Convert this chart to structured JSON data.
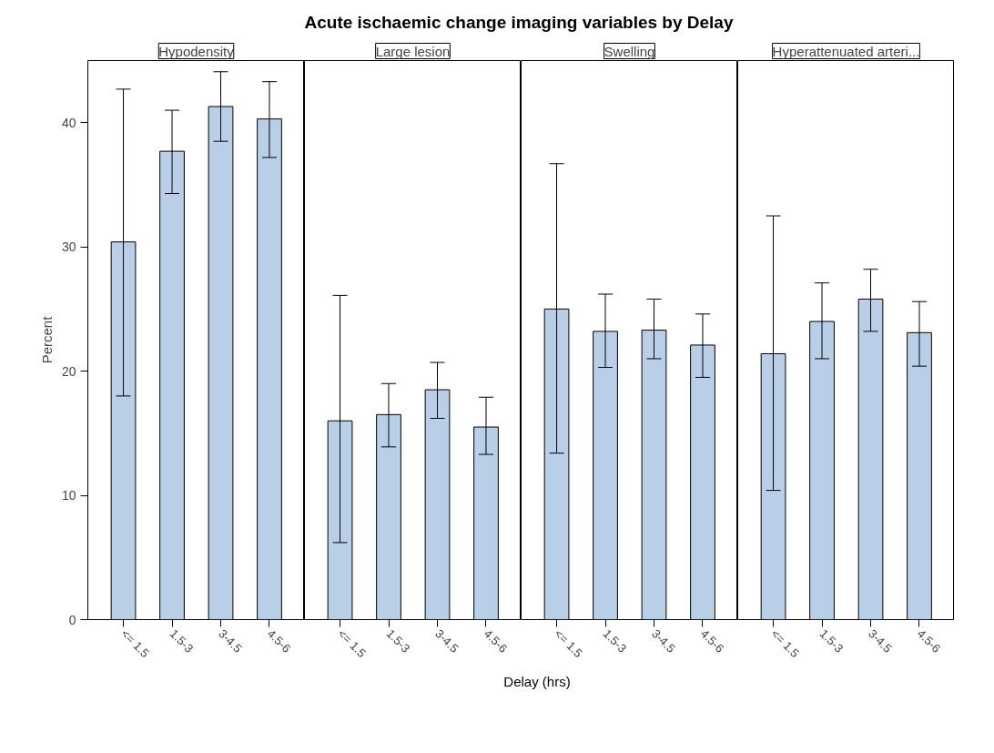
{
  "chart_data": [
    {
      "type": "other",
      "title": "Acute ischaemic change imaging variables by Delay",
      "xlabel": "Delay (hrs)"
    },
    {
      "type": "bar",
      "subtitle": "Hypodensity",
      "ylabel": "Percent",
      "categories": [
        "<= 1.5",
        "1.5-3",
        "3-4.5",
        "4.5-6"
      ],
      "values": [
        30.4,
        37.7,
        41.3,
        40.3
      ],
      "errors": [
        [
          18.0,
          42.7
        ],
        [
          34.3,
          41.0
        ],
        [
          38.5,
          44.1
        ],
        [
          37.2,
          43.3
        ]
      ],
      "color": "#b9cfe7",
      "ylim": [
        0,
        45
      ],
      "yticks": [
        0,
        10,
        20,
        30,
        40
      ],
      "grid": false
    },
    {
      "type": "bar",
      "subtitle": "Large lesion",
      "categories": [
        "<= 1.5",
        "1.5-3",
        "3-4.5",
        "4.5-6"
      ],
      "values": [
        16.0,
        16.5,
        18.5,
        15.5
      ],
      "errors": [
        [
          6.2,
          26.1
        ],
        [
          13.9,
          19.0
        ],
        [
          16.2,
          20.7
        ],
        [
          13.3,
          17.9
        ]
      ],
      "color": "#b9cfe7",
      "ylim": [
        0,
        45
      ],
      "tick_labels": "x",
      "grid": false
    },
    {
      "type": "bar",
      "subtitle": "Swelling",
      "categories": [
        "<= 1.5",
        "1.5-3",
        "3-4.5",
        "4.5-6"
      ],
      "values": [
        25.0,
        23.2,
        23.3,
        22.1
      ],
      "errors": [
        [
          13.4,
          36.7
        ],
        [
          20.3,
          26.2
        ],
        [
          21.0,
          25.8
        ],
        [
          19.5,
          24.6
        ]
      ],
      "color": "#b9cfe7",
      "ylim": [
        0,
        45
      ],
      "tick_labels": "x",
      "grid": false
    },
    {
      "type": "bar",
      "subtitle": "Hyperattenuated arteri...",
      "categories": [
        "<= 1.5",
        "1.5-3",
        "3-4.5",
        "4.5-6"
      ],
      "values": [
        21.4,
        24.0,
        25.8,
        23.1
      ],
      "errors": [
        [
          10.4,
          32.5
        ],
        [
          21.0,
          27.1
        ],
        [
          23.2,
          28.2
        ],
        [
          20.4,
          25.6
        ]
      ],
      "color": "#b9cfe7",
      "ylim": [
        0,
        45
      ],
      "tick_labels": "x",
      "grid": false
    }
  ]
}
